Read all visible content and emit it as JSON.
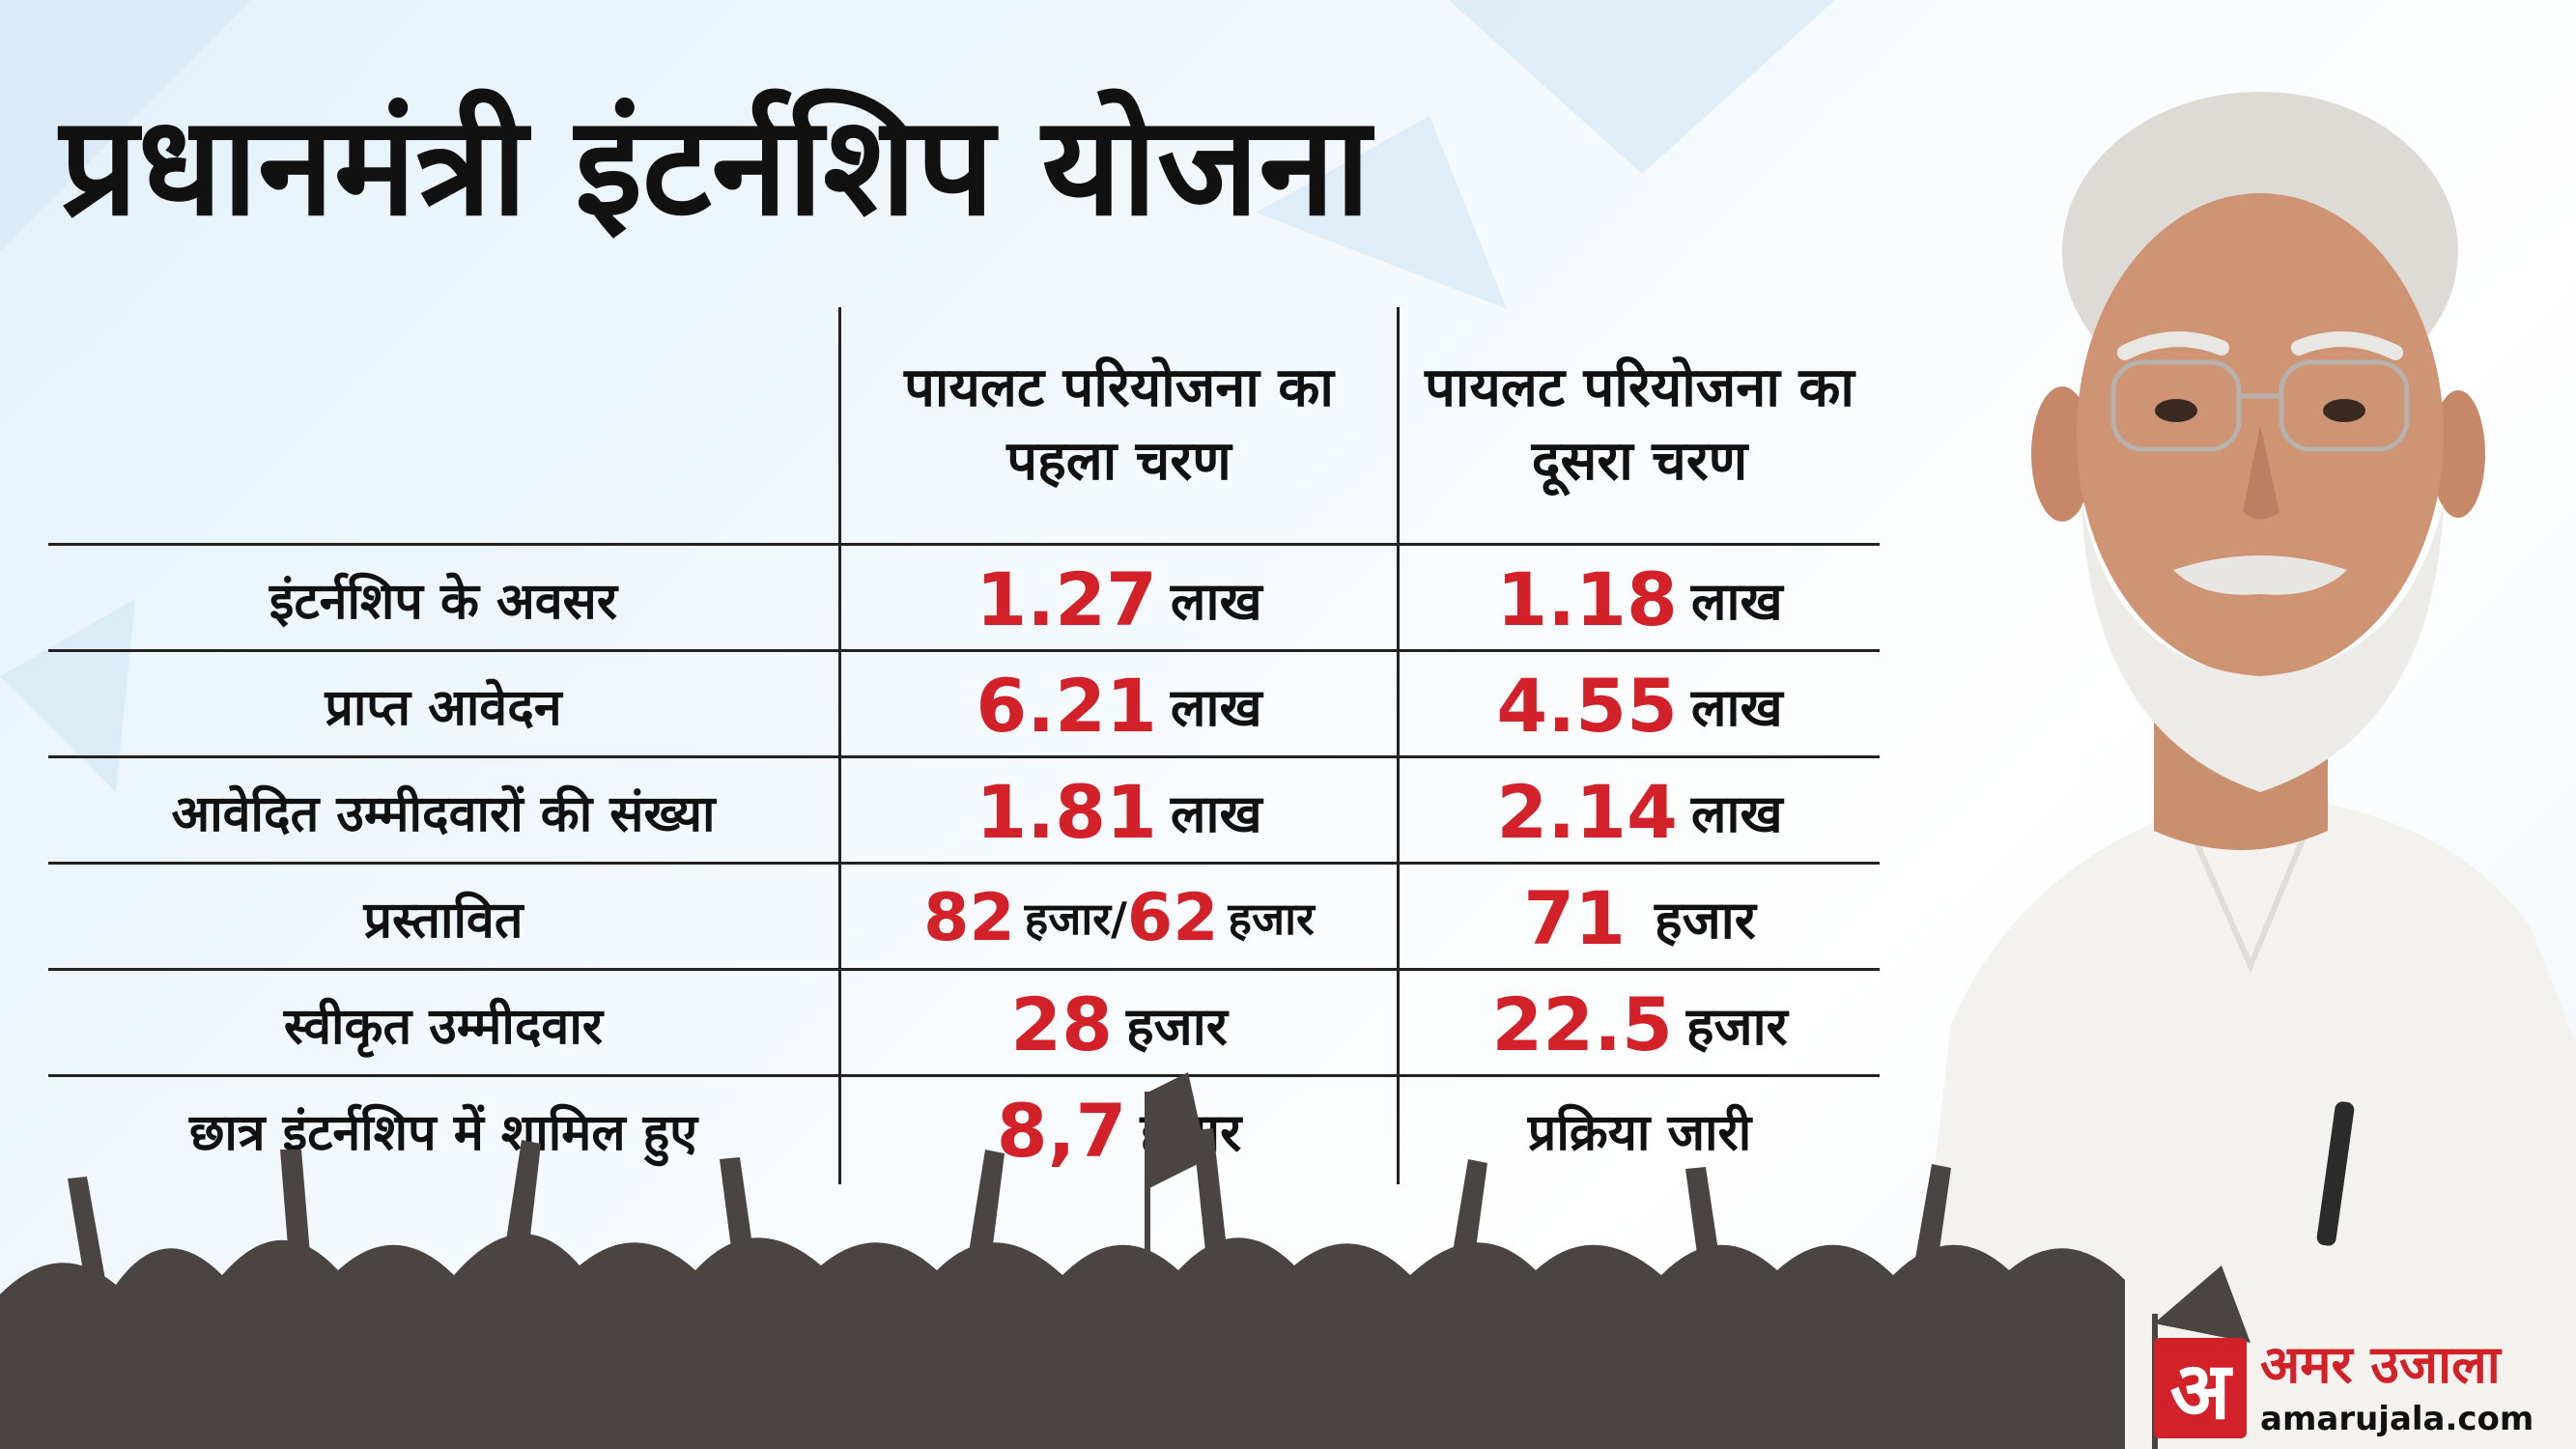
{
  "title": "प्रधानमंत्री इंटर्नशिप योजना",
  "table": {
    "headers": [
      "",
      "पायलट परियोजना का पहला चरण",
      "पायलट परियोजना का दूसरा चरण"
    ],
    "rows": [
      {
        "label": "इंटर्नशिप के अवसर",
        "phase1": {
          "value": "1.27",
          "unit": "लाख"
        },
        "phase2": {
          "value": "1.18",
          "unit": "लाख"
        }
      },
      {
        "label": "प्राप्त आवेदन",
        "phase1": {
          "value": "6.21",
          "unit": "लाख"
        },
        "phase2": {
          "value": "4.55",
          "unit": "लाख"
        }
      },
      {
        "label": "आवेदित उम्मीदवारों की संख्या",
        "phase1": {
          "value": "1.81",
          "unit": "लाख"
        },
        "phase2": {
          "value": "2.14",
          "unit": "लाख"
        }
      },
      {
        "label": "प्रस्तावित",
        "phase1": {
          "value": "82",
          "unit": "हजार/",
          "value2": "62",
          "unit2": "हजार"
        },
        "phase2": {
          "value": "71",
          "unit": "हजार"
        }
      },
      {
        "label": "स्वीकृत उम्मीदवार",
        "phase1": {
          "value": "28",
          "unit": "हजार"
        },
        "phase2": {
          "value": "22.5",
          "unit": "हजार"
        }
      },
      {
        "label": "छात्र इंटर्नशिप में शामिल हुए",
        "phase1": {
          "value": "8,7",
          "unit": "हजार"
        },
        "phase2": {
          "text": "प्रक्रिया जारी"
        }
      }
    ]
  },
  "logo": {
    "mark": "अ",
    "name": "अमर उजाला",
    "url": "amarujala.com"
  },
  "colors": {
    "accent_red": "#d22128",
    "text": "#111111",
    "crowd": "#4a4543",
    "background": "#eaf4fb"
  }
}
